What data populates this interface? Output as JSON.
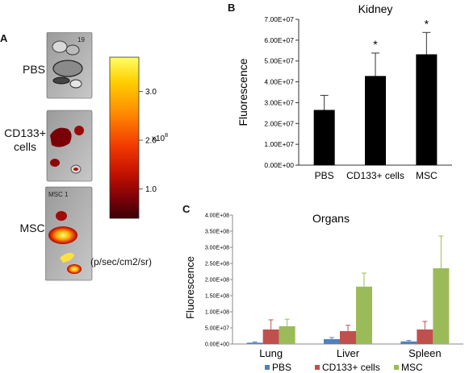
{
  "panel_a": {
    "letter": "A",
    "rows": [
      {
        "label_lines": [
          "PBS"
        ],
        "tag": "19"
      },
      {
        "label_lines": [
          "CD133+",
          "cells"
        ],
        "tag": ""
      },
      {
        "label_lines": [
          "MSC"
        ],
        "tag": "MSC 1"
      }
    ],
    "colorbar": {
      "ticks": [
        "3.0",
        "2.0",
        "1.0"
      ],
      "tick_values": [
        3.0,
        2.0,
        1.0
      ],
      "range": [
        0.4,
        3.7
      ],
      "scale_label": "x10",
      "scale_exp": "8",
      "unit": "(p/sec/cm2/sr)",
      "colors": [
        "#ffff66",
        "#ffd000",
        "#ff8a00",
        "#f23a00",
        "#c41200",
        "#7a0008",
        "#3a0005"
      ]
    }
  },
  "chart_data": [
    {
      "id": "B",
      "type": "bar",
      "panel_letter": "B",
      "title": "Kidney",
      "ylabel": "Fluorescence",
      "xlabel": "",
      "categories": [
        "PBS",
        "CD133+ cells",
        "MSC"
      ],
      "values": [
        26500000,
        42800000,
        53200000
      ],
      "errors": [
        7000000,
        11000000,
        10500000
      ],
      "annotations": [
        "",
        "*",
        "*"
      ],
      "ylim": [
        0,
        70000000
      ],
      "yticks": [
        0,
        10000000,
        20000000,
        30000000,
        40000000,
        50000000,
        60000000,
        70000000
      ],
      "ytick_labels": [
        "0.00E+00",
        "1.00E+07",
        "2.00E+07",
        "3.00E+07",
        "4.00E+07",
        "5.00E+07",
        "6.00E+07",
        "7.00E+07"
      ],
      "bar_color": "#000000",
      "grid": false
    },
    {
      "id": "C",
      "type": "bar",
      "panel_letter": "C",
      "title": "Organs",
      "ylabel": "Fluorescence",
      "xlabel": "",
      "categories": [
        "Lung",
        "Liver",
        "Spleen"
      ],
      "series": [
        {
          "name": "PBS",
          "color": "#4f81bd",
          "values": [
            4000000,
            15000000,
            8000000
          ],
          "errors": [
            2000000,
            5000000,
            3000000
          ]
        },
        {
          "name": "CD133+ cells",
          "color": "#c0504d",
          "values": [
            45000000,
            40000000,
            45000000
          ],
          "errors": [
            30000000,
            18000000,
            25000000
          ]
        },
        {
          "name": "MSC",
          "color": "#9bbb59",
          "values": [
            55000000,
            178000000,
            235000000
          ],
          "errors": [
            22000000,
            42000000,
            100000000
          ]
        }
      ],
      "ylim": [
        0,
        400000000
      ],
      "yticks": [
        0,
        50000000,
        100000000,
        150000000,
        200000000,
        250000000,
        300000000,
        350000000,
        400000000
      ],
      "ytick_labels": [
        "0.00E+00",
        "5.00E+07",
        "1.00E+08",
        "1.50E+08",
        "2.00E+08",
        "2.50E+08",
        "3.00E+08",
        "3.50E+08",
        "4.00E+08"
      ],
      "legend_position": "bottom",
      "grid": false
    }
  ]
}
